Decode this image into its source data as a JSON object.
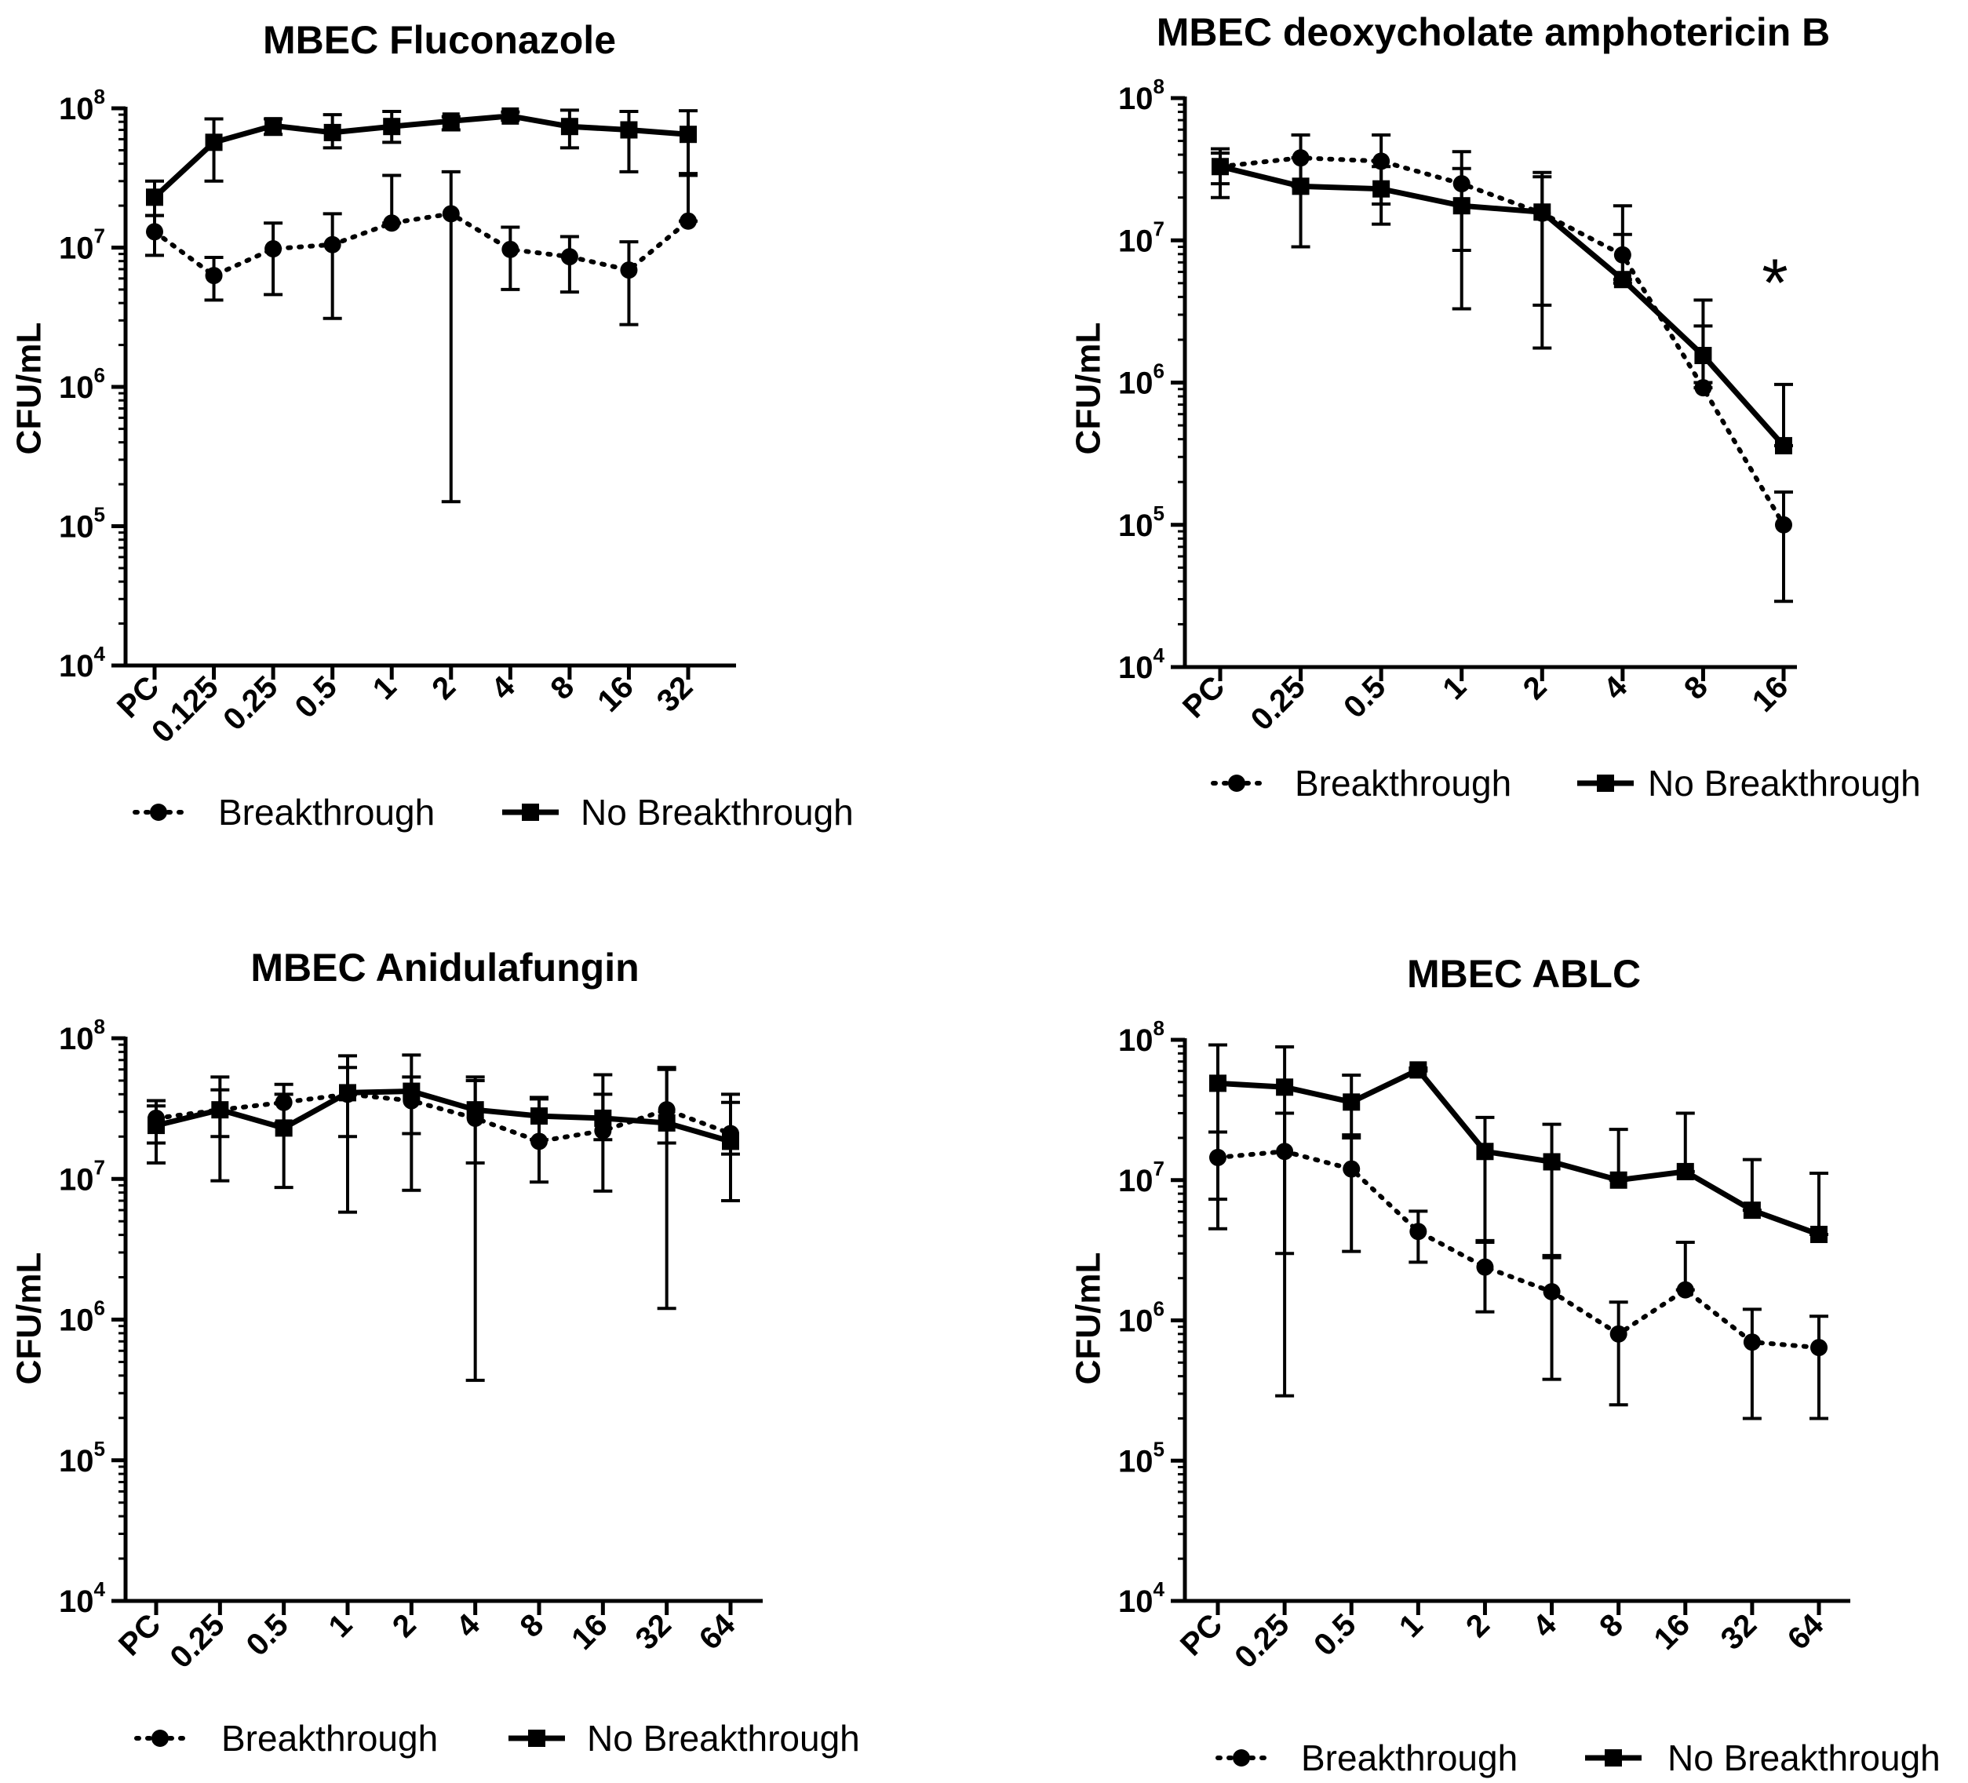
{
  "chart_data": [
    {
      "type": "line",
      "title": "MBEC Fluconazole",
      "xlabel": "",
      "ylabel": "CFU/mL",
      "yscale": "log",
      "ylim": [
        10000,
        100000000
      ],
      "y_ticks": [
        {
          "base": "10",
          "exp": "4"
        },
        {
          "base": "10",
          "exp": "5"
        },
        {
          "base": "10",
          "exp": "6"
        },
        {
          "base": "10",
          "exp": "7"
        },
        {
          "base": "10",
          "exp": "8"
        }
      ],
      "categories": [
        "PC",
        "0.125",
        "0.25",
        "0.5",
        "1",
        "2",
        "4",
        "8",
        "16",
        "32"
      ],
      "series": [
        {
          "name": "Breakthrough",
          "marker": "circle",
          "style": "dotted",
          "values": [
            13000000,
            6300000,
            9800000,
            10500000,
            15000000,
            17500000,
            9700000,
            8600000,
            6900000,
            15500000
          ],
          "err_low": [
            8800000,
            4200000,
            4600000,
            3100000,
            15000000,
            150000,
            5000000,
            4800000,
            2800000,
            15500000
          ],
          "err_high": [
            17000000,
            8500000,
            15000000,
            17500000,
            33000000,
            35000000,
            14000000,
            12000000,
            11000000,
            33000000
          ]
        },
        {
          "name": "No Breakthrough",
          "marker": "square",
          "style": "solid",
          "values": [
            23000000,
            57000000,
            75000000,
            67000000,
            74000000,
            81000000,
            88000000,
            74000000,
            70000000,
            65000000
          ],
          "err_low": [
            17000000,
            30000000,
            65000000,
            52000000,
            57000000,
            70000000,
            82000000,
            52000000,
            35000000,
            34000000
          ],
          "err_high": [
            30000000,
            84000000,
            84000000,
            90000000,
            95000000,
            87000000,
            94000000,
            97000000,
            95000000,
            96000000
          ]
        }
      ],
      "legend": "bottom"
    },
    {
      "type": "line",
      "title": "MBEC deoxycholate amphotericin B",
      "xlabel": "",
      "ylabel": "CFU/mL",
      "yscale": "log",
      "ylim": [
        10000,
        100000000
      ],
      "y_ticks": [
        {
          "base": "10",
          "exp": "4"
        },
        {
          "base": "10",
          "exp": "5"
        },
        {
          "base": "10",
          "exp": "6"
        },
        {
          "base": "10",
          "exp": "7"
        },
        {
          "base": "10",
          "exp": "8"
        }
      ],
      "categories": [
        "PC",
        "0.25",
        "0.5",
        "1",
        "2",
        "4",
        "8",
        "16"
      ],
      "series": [
        {
          "name": "Breakthrough",
          "marker": "circle",
          "style": "dotted",
          "values": [
            33000000,
            38000000,
            36000000,
            25000000,
            15500000,
            7900000,
            920000,
            100000
          ],
          "err_low": [
            20000000,
            24000000,
            18000000,
            8500000,
            3500000,
            5000000,
            920000,
            29000
          ],
          "err_high": [
            44000000,
            55000000,
            55000000,
            42000000,
            28000000,
            17500000,
            2500000,
            170000
          ]
        },
        {
          "name": "No Breakthrough",
          "marker": "square",
          "style": "solid",
          "values": [
            33000000,
            24000000,
            23000000,
            17500000,
            15800000,
            5300000,
            1550000,
            360000
          ],
          "err_low": [
            25000000,
            9000000,
            13000000,
            3300000,
            1750000,
            5300000,
            1000000,
            360000
          ],
          "err_high": [
            41000000,
            38000000,
            33000000,
            32000000,
            30000000,
            11000000,
            3800000,
            970000
          ]
        }
      ],
      "annotation": "*",
      "legend": "bottom"
    },
    {
      "type": "line",
      "title": "MBEC Anidulafungin",
      "xlabel": "",
      "ylabel": "CFU/mL",
      "yscale": "log",
      "ylim": [
        10000,
        100000000
      ],
      "y_ticks": [
        {
          "base": "10",
          "exp": "4"
        },
        {
          "base": "10",
          "exp": "5"
        },
        {
          "base": "10",
          "exp": "6"
        },
        {
          "base": "10",
          "exp": "7"
        },
        {
          "base": "10",
          "exp": "8"
        }
      ],
      "categories": [
        "PC",
        "0.25",
        "0.5",
        "1",
        "2",
        "4",
        "8",
        "16",
        "32",
        "64"
      ],
      "series": [
        {
          "name": "Breakthrough",
          "marker": "circle",
          "style": "dotted",
          "values": [
            27000000,
            31000000,
            35000000,
            40000000,
            36000000,
            27000000,
            18500000,
            22000000,
            31000000,
            21000000
          ],
          "err_low": [
            13000000,
            20000000,
            25000000,
            20000000,
            21000000,
            13000000,
            9500000,
            8200000,
            1200000,
            7000000
          ],
          "err_high": [
            36000000,
            43000000,
            47000000,
            62000000,
            53000000,
            50000000,
            37000000,
            40000000,
            60000000,
            40000000
          ]
        },
        {
          "name": "No Breakthrough",
          "marker": "square",
          "style": "solid",
          "values": [
            24000000,
            31000000,
            23000000,
            41000000,
            42000000,
            31000000,
            28000000,
            27000000,
            25000000,
            18500000
          ],
          "err_low": [
            18000000,
            9700000,
            8700000,
            5800000,
            8300000,
            370000,
            19000000,
            19000000,
            18000000,
            15000000
          ],
          "err_high": [
            33000000,
            53000000,
            40000000,
            75000000,
            76000000,
            53000000,
            38000000,
            55000000,
            62000000,
            35000000
          ]
        }
      ],
      "legend": "bottom"
    },
    {
      "type": "line",
      "title": "MBEC ABLC",
      "xlabel": "",
      "ylabel": "CFU/mL",
      "yscale": "log",
      "ylim": [
        10000,
        100000000
      ],
      "y_ticks": [
        {
          "base": "10",
          "exp": "4"
        },
        {
          "base": "10",
          "exp": "5"
        },
        {
          "base": "10",
          "exp": "6"
        },
        {
          "base": "10",
          "exp": "7"
        },
        {
          "base": "10",
          "exp": "8"
        }
      ],
      "categories": [
        "PC",
        "0.25",
        "0.5",
        "1",
        "2",
        "4",
        "8",
        "16",
        "32",
        "64"
      ],
      "series": [
        {
          "name": "Breakthrough",
          "marker": "circle",
          "style": "dotted",
          "values": [
            14500000,
            16000000,
            12000000,
            4300000,
            2400000,
            1600000,
            800000,
            1650000,
            700000,
            640000
          ],
          "err_low": [
            4500000,
            290000,
            3100000,
            2600000,
            1150000,
            380000,
            250000,
            1650000,
            200000,
            200000
          ],
          "err_high": [
            22000000,
            30000000,
            21000000,
            6000000,
            3600000,
            2800000,
            1350000,
            3600000,
            1200000,
            1070000
          ]
        },
        {
          "name": "No Breakthrough",
          "marker": "square",
          "style": "solid",
          "values": [
            49000000,
            46000000,
            36000000,
            61000000,
            16000000,
            13500000,
            10000000,
            11500000,
            6100000,
            4100000
          ],
          "err_low": [
            7300000,
            3000000,
            20000000,
            60000000,
            3700000,
            2900000,
            10000000,
            11500000,
            6100000,
            4100000
          ],
          "err_high": [
            92000000,
            89000000,
            56000000,
            63000000,
            28000000,
            25000000,
            23000000,
            30000000,
            14000000,
            11200000
          ]
        }
      ],
      "legend": "bottom"
    }
  ]
}
